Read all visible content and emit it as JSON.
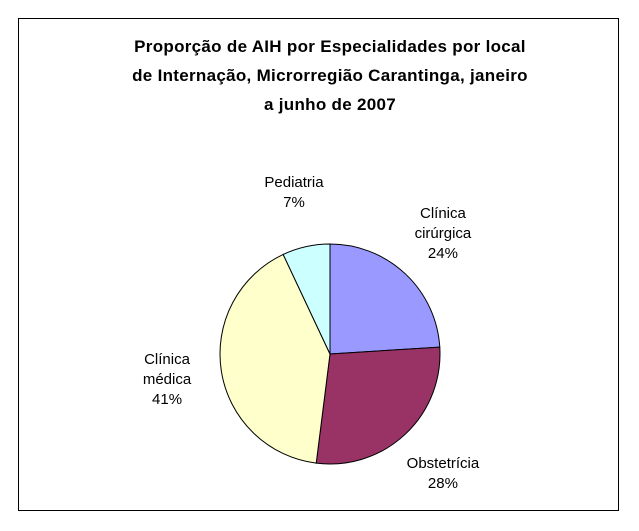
{
  "chart_data": {
    "type": "pie",
    "title": "Proporção de AIH por Especialidades por local de Internação, Microrregião Carantinga, janeiro a junho de 2007",
    "categories": [
      "Clínica cirúrgica",
      "Obstetrícia",
      "Clínica médica",
      "Pediatria"
    ],
    "values": [
      24,
      28,
      41,
      7
    ],
    "value_labels": [
      "24%",
      "28%",
      "41%",
      "7%"
    ],
    "colors": [
      "#9999ff",
      "#993366",
      "#ffffcc",
      "#ccffff"
    ]
  }
}
